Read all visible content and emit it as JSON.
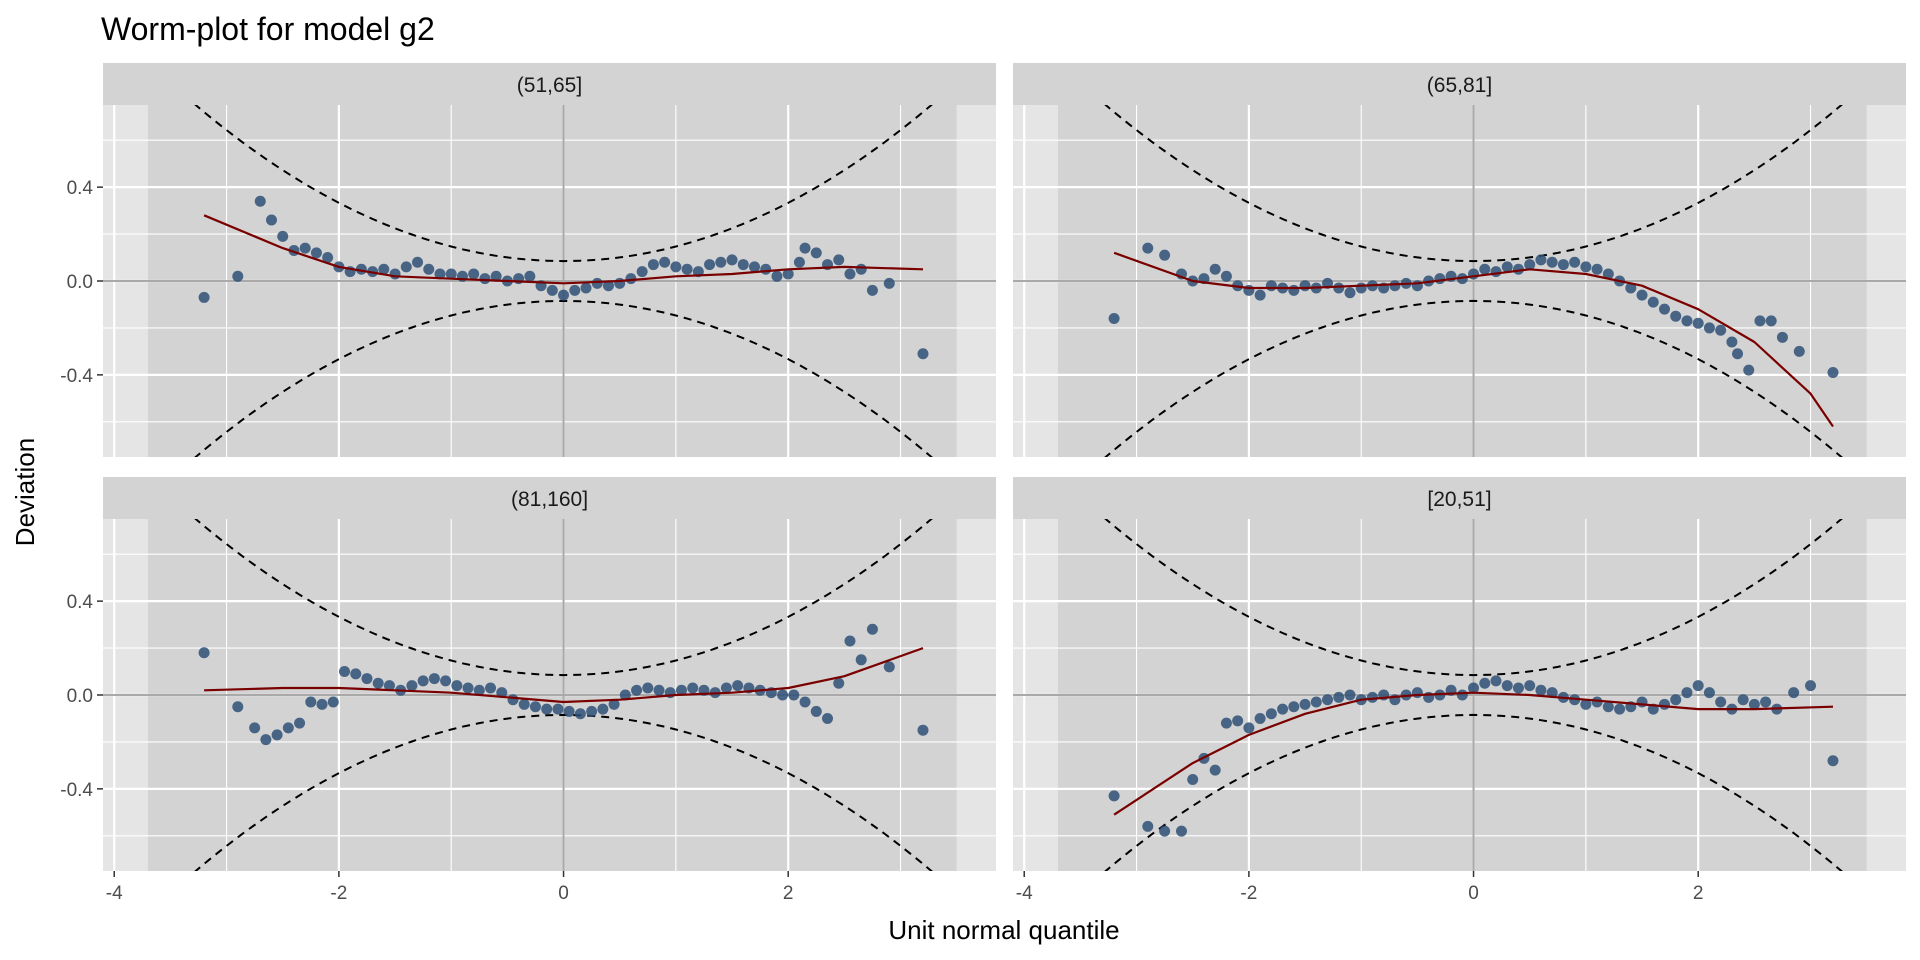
{
  "chart_data": {
    "type": "scatter",
    "title": "Worm-plot for model g2",
    "xlabel": "Unit normal quantile",
    "ylabel": "Deviation",
    "xlim": [
      -4.1,
      3.85
    ],
    "ylim": [
      -0.75,
      0.75
    ],
    "x_ticks": [
      -4,
      -2,
      0,
      2
    ],
    "x_tick_labels": [
      "-4",
      "-2",
      "0",
      "2"
    ],
    "y_ticks": [
      -0.4,
      0.0,
      0.4
    ],
    "y_tick_labels": [
      "-0.4",
      "0.0",
      "0.4"
    ],
    "layout": "2x2 facets",
    "grid": true,
    "colors": {
      "panel_background": "#e5e5e5",
      "strip_background": "#d3d3d3",
      "shaded_region": "#d3d3d3",
      "points": "#2f5077",
      "fit_line": "#7a0000",
      "confidence_bands": "#000000",
      "reference_lines": "#a9a9a9",
      "gridlines": "#ffffff"
    },
    "shaded_x_range": [
      -3.7,
      3.5
    ],
    "confidence_band": {
      "offset": 0.085,
      "curvature": 0.062,
      "style": "dashed"
    },
    "panels": [
      {
        "label": "(51,65]",
        "fit": {
          "x": [
            -3.2,
            -2.5,
            -2.0,
            -1.5,
            -1.0,
            -0.5,
            0.0,
            0.5,
            1.0,
            1.5,
            2.0,
            2.5,
            3.2
          ],
          "y": [
            0.28,
            0.14,
            0.06,
            0.02,
            0.01,
            0.0,
            -0.01,
            0.0,
            0.02,
            0.03,
            0.05,
            0.06,
            0.05
          ]
        },
        "points": [
          [
            -3.2,
            -0.07
          ],
          [
            -2.9,
            0.02
          ],
          [
            -2.7,
            0.34
          ],
          [
            -2.6,
            0.26
          ],
          [
            -2.5,
            0.19
          ],
          [
            -2.4,
            0.13
          ],
          [
            -2.3,
            0.14
          ],
          [
            -2.2,
            0.12
          ],
          [
            -2.1,
            0.1
          ],
          [
            -2.0,
            0.06
          ],
          [
            -1.9,
            0.04
          ],
          [
            -1.8,
            0.05
          ],
          [
            -1.7,
            0.04
          ],
          [
            -1.6,
            0.05
          ],
          [
            -1.5,
            0.03
          ],
          [
            -1.4,
            0.06
          ],
          [
            -1.3,
            0.08
          ],
          [
            -1.2,
            0.05
          ],
          [
            -1.1,
            0.03
          ],
          [
            -1.0,
            0.03
          ],
          [
            -0.9,
            0.02
          ],
          [
            -0.8,
            0.03
          ],
          [
            -0.7,
            0.01
          ],
          [
            -0.6,
            0.02
          ],
          [
            -0.5,
            0.0
          ],
          [
            -0.4,
            0.01
          ],
          [
            -0.3,
            0.02
          ],
          [
            -0.2,
            -0.02
          ],
          [
            -0.1,
            -0.04
          ],
          [
            0.0,
            -0.06
          ],
          [
            0.1,
            -0.04
          ],
          [
            0.2,
            -0.03
          ],
          [
            0.3,
            -0.01
          ],
          [
            0.4,
            -0.02
          ],
          [
            0.5,
            -0.01
          ],
          [
            0.6,
            0.01
          ],
          [
            0.7,
            0.04
          ],
          [
            0.8,
            0.07
          ],
          [
            0.9,
            0.08
          ],
          [
            1.0,
            0.06
          ],
          [
            1.1,
            0.05
          ],
          [
            1.2,
            0.04
          ],
          [
            1.3,
            0.07
          ],
          [
            1.4,
            0.08
          ],
          [
            1.5,
            0.09
          ],
          [
            1.6,
            0.07
          ],
          [
            1.7,
            0.06
          ],
          [
            1.8,
            0.05
          ],
          [
            1.9,
            0.02
          ],
          [
            2.0,
            0.03
          ],
          [
            2.1,
            0.08
          ],
          [
            2.15,
            0.14
          ],
          [
            2.25,
            0.12
          ],
          [
            2.35,
            0.07
          ],
          [
            2.45,
            0.09
          ],
          [
            2.55,
            0.03
          ],
          [
            2.65,
            0.05
          ],
          [
            2.75,
            -0.04
          ],
          [
            2.9,
            -0.01
          ],
          [
            3.2,
            -0.31
          ]
        ]
      },
      {
        "label": "(65,81]",
        "fit": {
          "x": [
            -3.2,
            -2.5,
            -2.0,
            -1.5,
            -1.0,
            -0.5,
            0.0,
            0.5,
            1.0,
            1.5,
            2.0,
            2.5,
            3.0,
            3.2
          ],
          "y": [
            0.12,
            0.0,
            -0.03,
            -0.03,
            -0.02,
            -0.01,
            0.02,
            0.05,
            0.03,
            -0.02,
            -0.12,
            -0.26,
            -0.48,
            -0.62
          ]
        },
        "points": [
          [
            -3.2,
            -0.16
          ],
          [
            -2.9,
            0.14
          ],
          [
            -2.75,
            0.11
          ],
          [
            -2.6,
            0.03
          ],
          [
            -2.5,
            0.0
          ],
          [
            -2.4,
            0.01
          ],
          [
            -2.3,
            0.05
          ],
          [
            -2.2,
            0.02
          ],
          [
            -2.1,
            -0.02
          ],
          [
            -2.0,
            -0.04
          ],
          [
            -1.9,
            -0.06
          ],
          [
            -1.8,
            -0.02
          ],
          [
            -1.7,
            -0.03
          ],
          [
            -1.6,
            -0.04
          ],
          [
            -1.5,
            -0.02
          ],
          [
            -1.4,
            -0.03
          ],
          [
            -1.3,
            -0.01
          ],
          [
            -1.2,
            -0.03
          ],
          [
            -1.1,
            -0.05
          ],
          [
            -1.0,
            -0.03
          ],
          [
            -0.9,
            -0.02
          ],
          [
            -0.8,
            -0.03
          ],
          [
            -0.7,
            -0.02
          ],
          [
            -0.6,
            -0.01
          ],
          [
            -0.5,
            -0.02
          ],
          [
            -0.4,
            0.0
          ],
          [
            -0.3,
            0.01
          ],
          [
            -0.2,
            0.02
          ],
          [
            -0.1,
            0.01
          ],
          [
            0.0,
            0.03
          ],
          [
            0.1,
            0.05
          ],
          [
            0.2,
            0.04
          ],
          [
            0.3,
            0.06
          ],
          [
            0.4,
            0.05
          ],
          [
            0.5,
            0.07
          ],
          [
            0.6,
            0.09
          ],
          [
            0.7,
            0.08
          ],
          [
            0.8,
            0.07
          ],
          [
            0.9,
            0.08
          ],
          [
            1.0,
            0.06
          ],
          [
            1.1,
            0.05
          ],
          [
            1.2,
            0.03
          ],
          [
            1.3,
            0.0
          ],
          [
            1.4,
            -0.03
          ],
          [
            1.5,
            -0.06
          ],
          [
            1.6,
            -0.09
          ],
          [
            1.7,
            -0.12
          ],
          [
            1.8,
            -0.15
          ],
          [
            1.9,
            -0.17
          ],
          [
            2.0,
            -0.18
          ],
          [
            2.1,
            -0.2
          ],
          [
            2.2,
            -0.21
          ],
          [
            2.3,
            -0.26
          ],
          [
            2.35,
            -0.31
          ],
          [
            2.45,
            -0.38
          ],
          [
            2.55,
            -0.17
          ],
          [
            2.65,
            -0.17
          ],
          [
            2.75,
            -0.24
          ],
          [
            2.9,
            -0.3
          ],
          [
            3.2,
            -0.39
          ]
        ]
      },
      {
        "label": "(81,160]",
        "fit": {
          "x": [
            -3.2,
            -2.5,
            -2.0,
            -1.5,
            -1.0,
            -0.5,
            0.0,
            0.5,
            1.0,
            1.5,
            2.0,
            2.5,
            3.2
          ],
          "y": [
            0.02,
            0.03,
            0.03,
            0.02,
            0.01,
            -0.01,
            -0.03,
            -0.02,
            0.0,
            0.01,
            0.03,
            0.08,
            0.2
          ]
        },
        "points": [
          [
            -3.2,
            0.18
          ],
          [
            -2.9,
            -0.05
          ],
          [
            -2.75,
            -0.14
          ],
          [
            -2.65,
            -0.19
          ],
          [
            -2.55,
            -0.17
          ],
          [
            -2.45,
            -0.14
          ],
          [
            -2.35,
            -0.12
          ],
          [
            -2.25,
            -0.03
          ],
          [
            -2.15,
            -0.04
          ],
          [
            -2.05,
            -0.03
          ],
          [
            -1.95,
            0.1
          ],
          [
            -1.85,
            0.09
          ],
          [
            -1.75,
            0.07
          ],
          [
            -1.65,
            0.05
          ],
          [
            -1.55,
            0.04
          ],
          [
            -1.45,
            0.02
          ],
          [
            -1.35,
            0.04
          ],
          [
            -1.25,
            0.06
          ],
          [
            -1.15,
            0.07
          ],
          [
            -1.05,
            0.06
          ],
          [
            -0.95,
            0.04
          ],
          [
            -0.85,
            0.03
          ],
          [
            -0.75,
            0.02
          ],
          [
            -0.65,
            0.03
          ],
          [
            -0.55,
            0.01
          ],
          [
            -0.45,
            -0.02
          ],
          [
            -0.35,
            -0.04
          ],
          [
            -0.25,
            -0.05
          ],
          [
            -0.15,
            -0.06
          ],
          [
            -0.05,
            -0.06
          ],
          [
            0.05,
            -0.07
          ],
          [
            0.15,
            -0.08
          ],
          [
            0.25,
            -0.07
          ],
          [
            0.35,
            -0.06
          ],
          [
            0.45,
            -0.04
          ],
          [
            0.55,
            0.0
          ],
          [
            0.65,
            0.02
          ],
          [
            0.75,
            0.03
          ],
          [
            0.85,
            0.02
          ],
          [
            0.95,
            0.01
          ],
          [
            1.05,
            0.02
          ],
          [
            1.15,
            0.03
          ],
          [
            1.25,
            0.02
          ],
          [
            1.35,
            0.01
          ],
          [
            1.45,
            0.03
          ],
          [
            1.55,
            0.04
          ],
          [
            1.65,
            0.03
          ],
          [
            1.75,
            0.02
          ],
          [
            1.85,
            0.01
          ],
          [
            1.95,
            0.0
          ],
          [
            2.05,
            0.0
          ],
          [
            2.15,
            -0.03
          ],
          [
            2.25,
            -0.07
          ],
          [
            2.35,
            -0.1
          ],
          [
            2.45,
            0.05
          ],
          [
            2.55,
            0.23
          ],
          [
            2.65,
            0.15
          ],
          [
            2.75,
            0.28
          ],
          [
            2.9,
            0.12
          ],
          [
            3.2,
            -0.15
          ]
        ]
      },
      {
        "label": "[20,51]",
        "fit": {
          "x": [
            -3.2,
            -2.5,
            -2.0,
            -1.5,
            -1.0,
            -0.5,
            0.0,
            0.5,
            1.0,
            1.5,
            2.0,
            2.5,
            3.2
          ],
          "y": [
            -0.51,
            -0.29,
            -0.17,
            -0.08,
            -0.02,
            0.0,
            0.01,
            0.0,
            -0.02,
            -0.04,
            -0.06,
            -0.06,
            -0.05
          ]
        },
        "points": [
          [
            -3.2,
            -0.43
          ],
          [
            -2.9,
            -0.56
          ],
          [
            -2.75,
            -0.58
          ],
          [
            -2.6,
            -0.58
          ],
          [
            -2.5,
            -0.36
          ],
          [
            -2.4,
            -0.27
          ],
          [
            -2.3,
            -0.32
          ],
          [
            -2.2,
            -0.12
          ],
          [
            -2.1,
            -0.11
          ],
          [
            -2.0,
            -0.14
          ],
          [
            -1.9,
            -0.1
          ],
          [
            -1.8,
            -0.08
          ],
          [
            -1.7,
            -0.06
          ],
          [
            -1.6,
            -0.05
          ],
          [
            -1.5,
            -0.04
          ],
          [
            -1.4,
            -0.03
          ],
          [
            -1.3,
            -0.02
          ],
          [
            -1.2,
            -0.01
          ],
          [
            -1.1,
            0.0
          ],
          [
            -1.0,
            -0.02
          ],
          [
            -0.9,
            -0.01
          ],
          [
            -0.8,
            0.0
          ],
          [
            -0.7,
            -0.02
          ],
          [
            -0.6,
            0.0
          ],
          [
            -0.5,
            0.01
          ],
          [
            -0.4,
            -0.01
          ],
          [
            -0.3,
            0.0
          ],
          [
            -0.2,
            0.02
          ],
          [
            -0.1,
            0.0
          ],
          [
            0.0,
            0.03
          ],
          [
            0.1,
            0.05
          ],
          [
            0.2,
            0.06
          ],
          [
            0.3,
            0.04
          ],
          [
            0.4,
            0.03
          ],
          [
            0.5,
            0.04
          ],
          [
            0.6,
            0.02
          ],
          [
            0.7,
            0.01
          ],
          [
            0.8,
            -0.01
          ],
          [
            0.9,
            -0.02
          ],
          [
            1.0,
            -0.04
          ],
          [
            1.1,
            -0.03
          ],
          [
            1.2,
            -0.05
          ],
          [
            1.3,
            -0.06
          ],
          [
            1.4,
            -0.05
          ],
          [
            1.5,
            -0.03
          ],
          [
            1.6,
            -0.06
          ],
          [
            1.7,
            -0.04
          ],
          [
            1.8,
            -0.02
          ],
          [
            1.9,
            0.01
          ],
          [
            2.0,
            0.04
          ],
          [
            2.1,
            0.01
          ],
          [
            2.2,
            -0.03
          ],
          [
            2.3,
            -0.06
          ],
          [
            2.4,
            -0.02
          ],
          [
            2.5,
            -0.04
          ],
          [
            2.6,
            -0.03
          ],
          [
            2.7,
            -0.06
          ],
          [
            2.85,
            0.01
          ],
          [
            3.0,
            0.04
          ],
          [
            3.2,
            -0.28
          ]
        ]
      }
    ]
  }
}
